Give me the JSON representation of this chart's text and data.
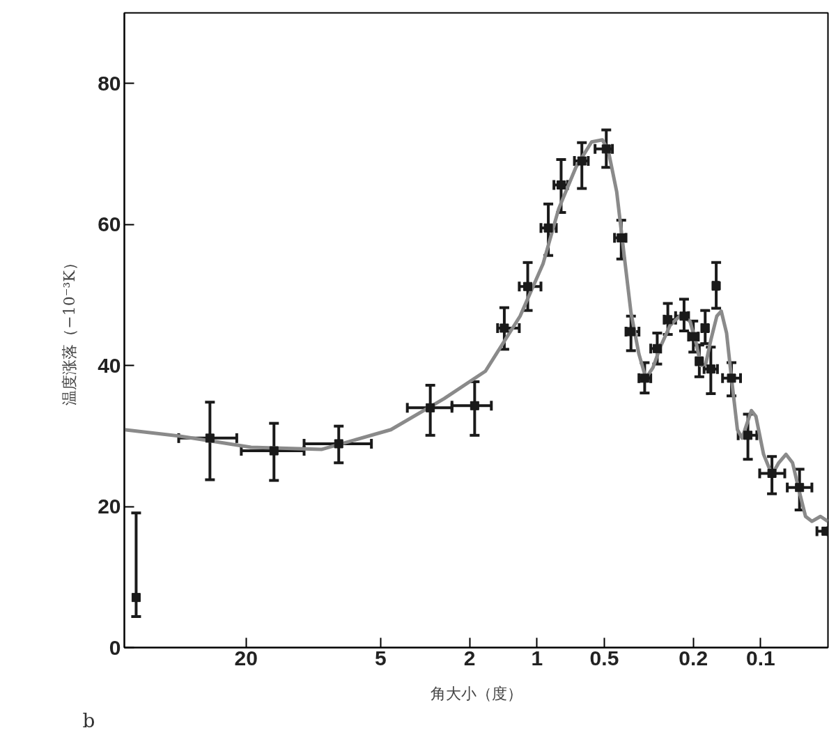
{
  "chart_data": {
    "type": "scatter",
    "xlabel": "角大小（度）",
    "ylabel": "温度涨落（−10⁻³K）",
    "annotations": [
      "b"
    ],
    "xlim": [
      70,
      0.05
    ],
    "xticks": [
      20,
      5,
      2,
      1,
      0.5,
      0.2,
      0.1
    ],
    "ylim": [
      0,
      90
    ],
    "yticks": [
      0,
      20,
      40,
      60,
      80
    ],
    "grid": false,
    "log": "x",
    "marker": "square",
    "series": [
      {
        "color": "#1a1a1a",
        "x": [
          62,
          29,
          15,
          7.7,
          3.0,
          1.9,
          1.4,
          1.1,
          0.89,
          0.78,
          0.63,
          0.49,
          0.42,
          0.38,
          0.33,
          0.29,
          0.26,
          0.22,
          0.2,
          0.188,
          0.177,
          0.167,
          0.158,
          0.135,
          0.114,
          0.089,
          0.067,
          0.051
        ],
        "values": [
          7.1,
          29.7,
          27.9,
          28.9,
          34.0,
          34.3,
          45.3,
          51.2,
          59.5,
          65.6,
          69.0,
          70.7,
          58.1,
          44.8,
          38.2,
          42.4,
          46.5,
          47.0,
          44.1,
          40.6,
          45.3,
          39.5,
          51.3,
          38.2,
          30.1,
          24.7,
          22.7,
          16.5
        ],
        "errors": [
          [
            4.4,
            19.1
          ],
          [
            23.8,
            34.8
          ],
          [
            23.7,
            31.8
          ],
          [
            26.2,
            31.4
          ],
          [
            30.1,
            37.2
          ],
          [
            30.1,
            37.7
          ],
          [
            42.3,
            48.2
          ],
          [
            47.8,
            54.6
          ],
          [
            55.6,
            62.9
          ],
          [
            61.7,
            69.2
          ],
          [
            65.1,
            71.6
          ],
          [
            68.1,
            73.4
          ],
          [
            55.1,
            60.6
          ],
          [
            42.1,
            47.0
          ],
          [
            36.1,
            40.4
          ],
          [
            40.2,
            44.6
          ],
          [
            44.4,
            48.8
          ],
          [
            44.9,
            49.4
          ],
          [
            41.9,
            46.3
          ],
          [
            38.4,
            42.9
          ],
          [
            43.1,
            47.8
          ],
          [
            36.0,
            42.6
          ],
          [
            48.1,
            54.6
          ],
          [
            35.7,
            40.4
          ],
          [
            26.7,
            33.1
          ],
          [
            21.8,
            27.1
          ],
          [
            19.5,
            25.3
          ],
          null
        ],
        "xerrors": [
          null,
          [
            22,
            40
          ],
          [
            11,
            21
          ],
          [
            5.5,
            11
          ],
          [
            2.4,
            3.8
          ],
          [
            1.6,
            2.4
          ],
          [
            1.2,
            1.5
          ],
          [
            0.96,
            1.2
          ],
          [
            0.82,
            0.96
          ],
          [
            0.73,
            0.84
          ],
          [
            0.59,
            0.68
          ],
          [
            0.46,
            0.55
          ],
          [
            0.4,
            0.45
          ],
          [
            0.35,
            0.4
          ],
          [
            0.31,
            0.35
          ],
          [
            0.28,
            0.31
          ],
          [
            0.24,
            0.27
          ],
          [
            0.21,
            0.24
          ],
          [
            0.19,
            0.21
          ],
          [
            0.183,
            0.194
          ],
          [
            0.172,
            0.183
          ],
          [
            0.156,
            0.179
          ],
          [
            0.155,
            0.163
          ],
          [
            0.123,
            0.148
          ],
          [
            0.104,
            0.126
          ],
          [
            0.078,
            0.101
          ],
          [
            0.059,
            0.076
          ],
          [
            0.05,
            0.056
          ]
        ]
      },
      {
        "type": "line",
        "marker": "none",
        "color": "#8a8a8a",
        "x": [
          70,
          40,
          19,
          9.2,
          4.5,
          2.6,
          1.7,
          1.19,
          0.94,
          0.8,
          0.67,
          0.57,
          0.51,
          0.48,
          0.44,
          0.41,
          0.38,
          0.35,
          0.326,
          0.303,
          0.281,
          0.254,
          0.23,
          0.207,
          0.194,
          0.185,
          0.176,
          0.167,
          0.157,
          0.15,
          0.142,
          0.135,
          0.127,
          0.121,
          0.115,
          0.11,
          0.105,
          0.097,
          0.089,
          0.083,
          0.077,
          0.072,
          0.067,
          0.063,
          0.059,
          0.054,
          0.05
        ],
        "values": [
          30.9,
          30.0,
          28.4,
          28.1,
          30.9,
          35.3,
          39.2,
          47.0,
          54.4,
          62.2,
          68.1,
          71.7,
          72.0,
          70.5,
          64.6,
          56.3,
          47.5,
          41.6,
          38.2,
          39.7,
          42.6,
          45.7,
          47.0,
          46.3,
          43.1,
          40.0,
          40.2,
          43.6,
          47.0,
          47.7,
          44.6,
          38.2,
          30.9,
          29.7,
          31.8,
          33.6,
          32.8,
          27.4,
          24.5,
          26.2,
          27.4,
          26.2,
          22.0,
          18.6,
          17.9,
          18.6,
          17.9
        ]
      }
    ]
  }
}
